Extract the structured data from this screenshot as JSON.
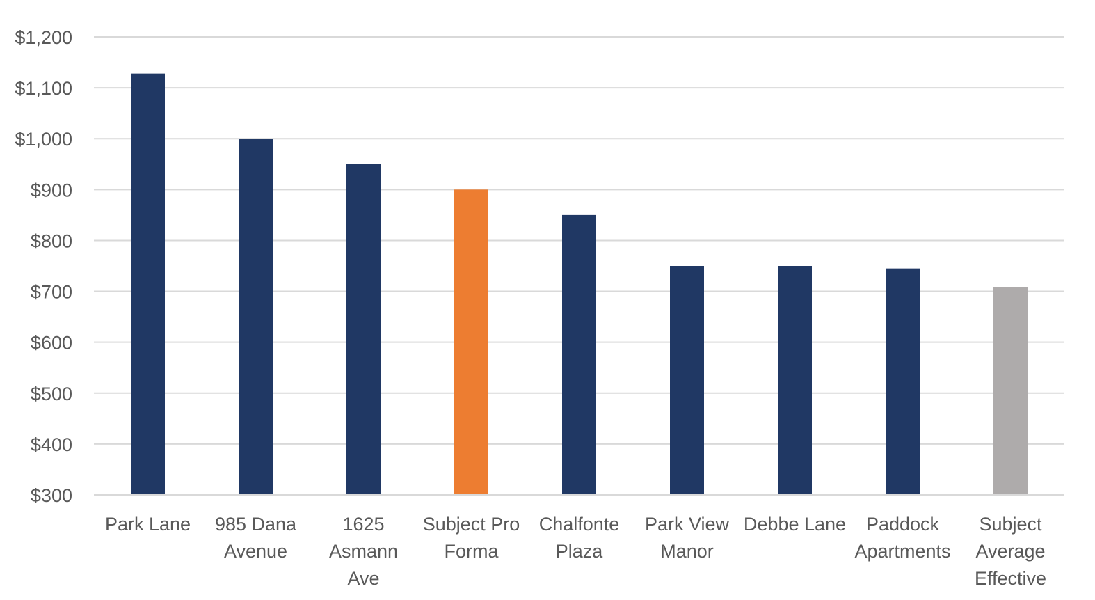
{
  "chart_data": {
    "type": "bar",
    "title": "",
    "xlabel": "",
    "ylabel": "",
    "ylim": [
      300,
      1200
    ],
    "yticks": [
      300,
      400,
      500,
      600,
      700,
      800,
      900,
      1000,
      1100,
      1200
    ],
    "ytick_labels": [
      "$300",
      "$400",
      "$500",
      "$600",
      "$700",
      "$800",
      "$900",
      "$1,000",
      "$1,100",
      "$1,200"
    ],
    "grid": true,
    "legend": "none",
    "categories": [
      [
        "Park Lane"
      ],
      [
        "985 Dana",
        "Avenue"
      ],
      [
        "1625",
        "Asmann",
        "Ave"
      ],
      [
        "Subject Pro",
        "Forma"
      ],
      [
        "Chalfonte",
        "Plaza"
      ],
      [
        "Park View",
        "Manor"
      ],
      [
        "Debbe Lane"
      ],
      [
        "Paddock",
        "Apartments"
      ],
      [
        "Subject",
        "Average",
        "Effective"
      ]
    ],
    "values": [
      1128,
      999,
      950,
      900,
      850,
      750,
      750,
      745,
      708
    ],
    "colors": [
      "#203864",
      "#203864",
      "#203864",
      "#ed7d31",
      "#203864",
      "#203864",
      "#203864",
      "#203864",
      "#aeabab"
    ]
  }
}
